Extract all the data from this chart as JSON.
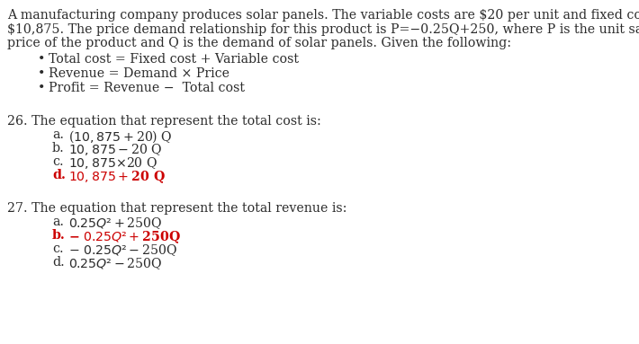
{
  "bg_color": "#ffffff",
  "text_color_black": "#2b2b2b",
  "text_color_red": "#cc0000",
  "intro_line1": "A manufacturing company produces solar panels. The variable costs are $20 per unit and fixed costs are",
  "intro_line2": "$10,875. The price demand relationship for this product is P=−0.25Q+250, where P is the unit sales",
  "intro_line3": "price of the product and Q is the demand of solar panels. Given the following:",
  "bullets": [
    "Total cost = Fixed cost + Variable cost",
    "Revenue = Demand × Price",
    "Profit = Revenue −  Total cost"
  ],
  "q26_stem": "26. The equation that represent the total cost is:",
  "q26_options": [
    {
      "label": "a.",
      "text": "($10,875 + $20) Q",
      "bold": false,
      "red": false
    },
    {
      "label": "b.",
      "text": "$10,875 − $20 Q",
      "bold": false,
      "red": false
    },
    {
      "label": "c.",
      "text": "$10,875 × $20 Q",
      "bold": false,
      "red": false
    },
    {
      "label": "d.",
      "text": "$10,875 + $20 Q",
      "bold": true,
      "red": true
    }
  ],
  "q27_stem": "27. The equation that represent the total revenue is:",
  "q27_options": [
    {
      "label": "a.",
      "text": "$0.25Q² + $250Q",
      "bold": false,
      "red": false
    },
    {
      "label": "b.",
      "text": "− $0.25Q² + $250Q",
      "bold": true,
      "red": true
    },
    {
      "label": "c.",
      "text": "− $0.25Q² − $250Q",
      "bold": false,
      "red": false
    },
    {
      "label": "d.",
      "text": "$0.25Q² − $250Q",
      "bold": false,
      "red": false
    }
  ],
  "font_family": "DejaVu Serif",
  "base_fontsize": 10.2,
  "option_fontsize": 10.2
}
